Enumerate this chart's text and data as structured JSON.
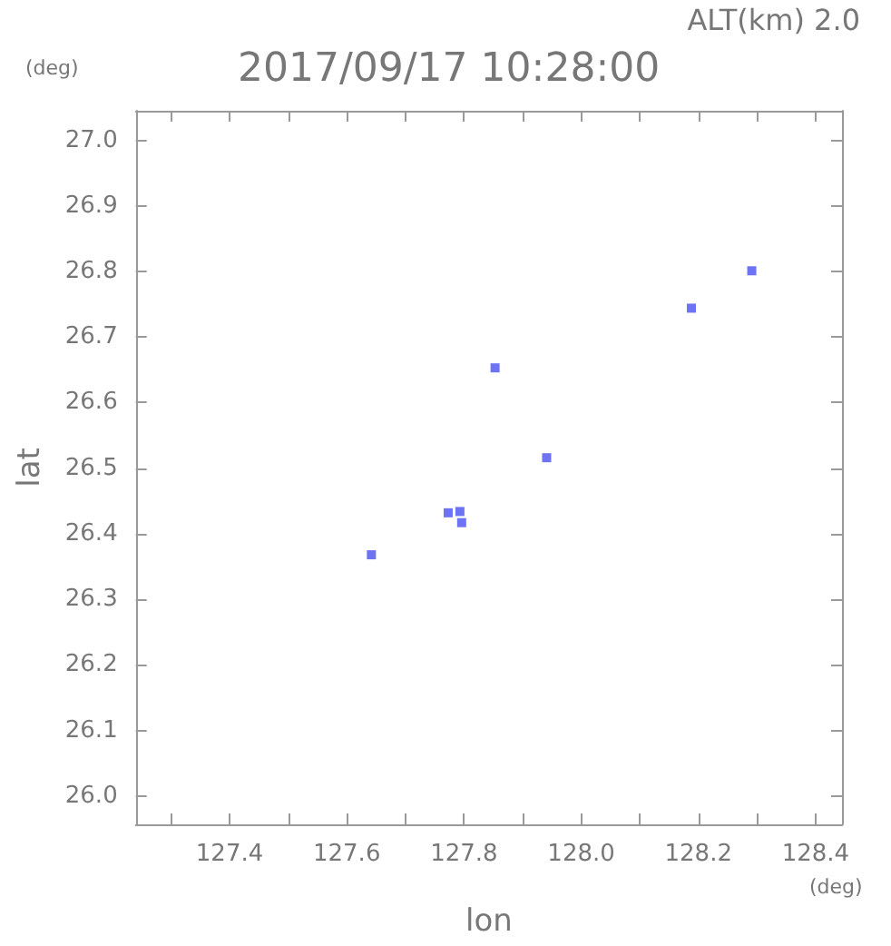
{
  "chart_data": {
    "type": "scatter",
    "title": "2017/09/17 10:28:00",
    "subtitle": "ALT(km) 2.0",
    "xlabel": "lon",
    "ylabel": "lat",
    "annotations": [
      "(deg)",
      "(deg)"
    ],
    "x": [
      128.188,
      128.291,
      127.853,
      127.941,
      127.773,
      127.793,
      127.796,
      127.642
    ],
    "series": [
      {
        "color": "#4a50f0",
        "values": [
          26.744,
          26.801,
          26.653,
          26.516,
          26.432,
          26.434,
          26.417,
          26.368
        ]
      }
    ],
    "xlim": [
      127.24,
      128.445
    ],
    "ylim": [
      25.957,
      27.045
    ],
    "xticks": [
      {
        "value": 127.3,
        "label": null
      },
      127.4,
      {
        "value": 127.5,
        "label": null
      },
      127.6,
      {
        "value": 127.7,
        "label": null
      },
      127.8,
      {
        "value": 127.9,
        "label": null
      },
      {
        "value": 128,
        "label": "128.0"
      },
      {
        "value": 128.1,
        "label": null
      },
      128.2,
      {
        "value": 128.3,
        "label": null
      },
      128.4
    ],
    "yticks": [
      {
        "value": 26,
        "label": "26.0"
      },
      26.1,
      26.2,
      26.3,
      26.4,
      26.5,
      26.6,
      26.7,
      26.8,
      26.9,
      {
        "value": 27,
        "label": "27.0"
      }
    ],
    "marker": "square",
    "grid": false
  }
}
